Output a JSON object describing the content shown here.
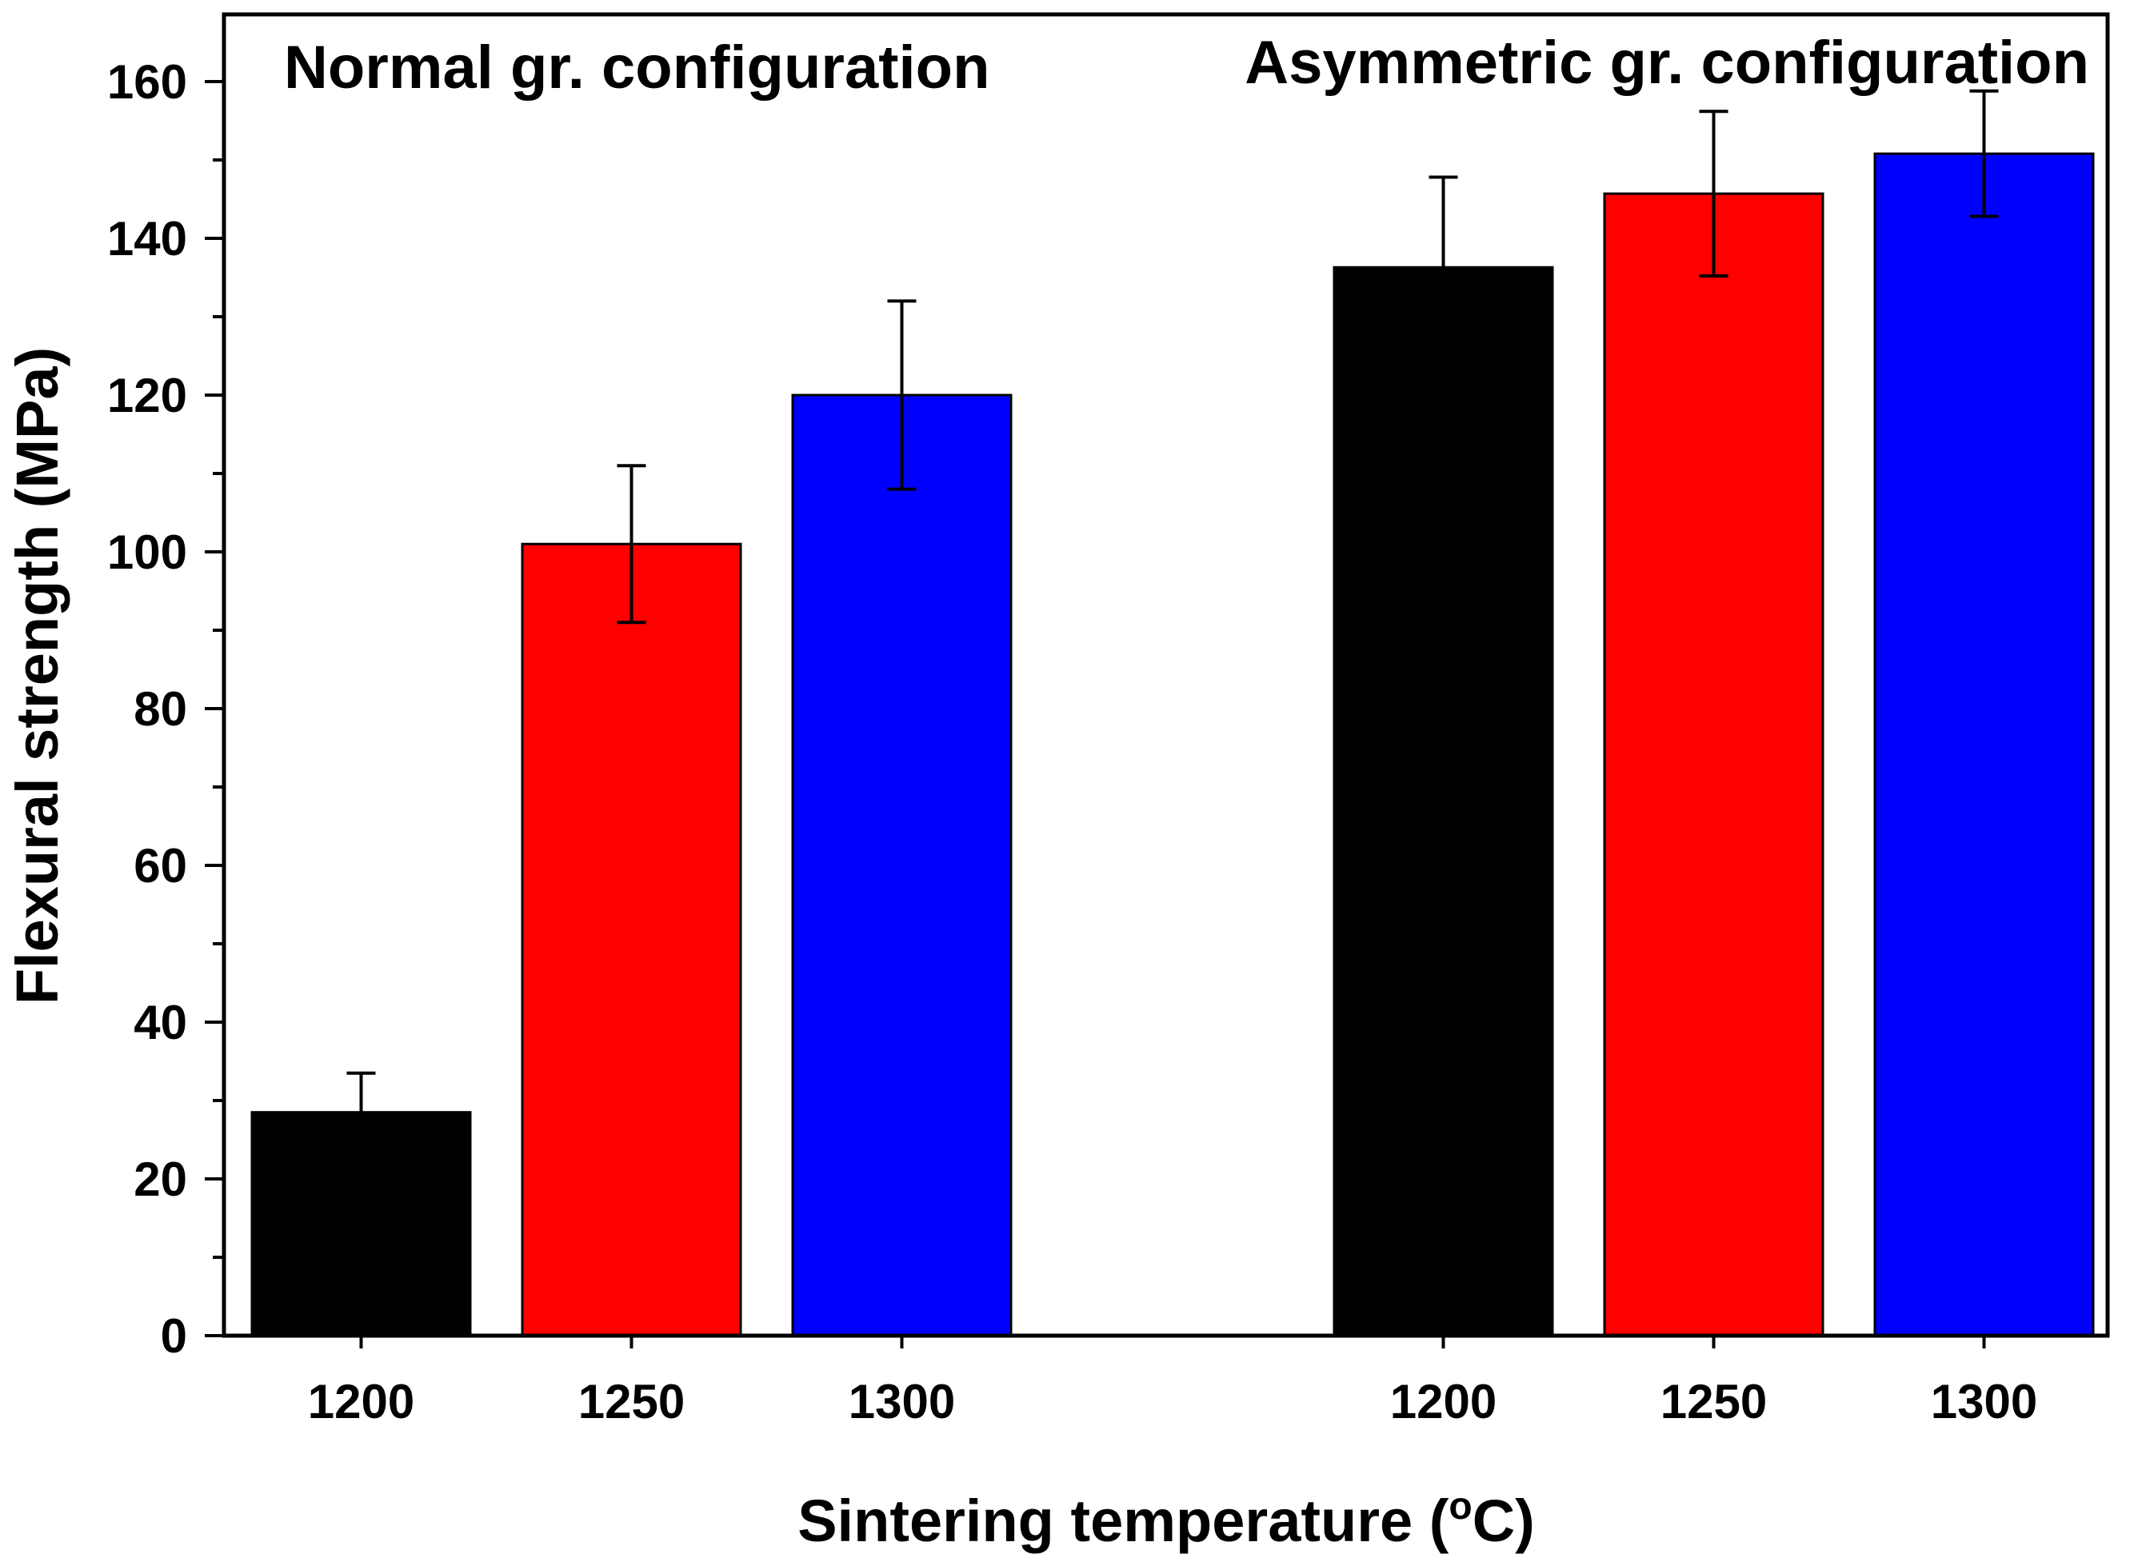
{
  "chart_data": {
    "type": "bar",
    "title": "",
    "xlabel": "Sintering temperature (",
    "xlabel_superscript": "o",
    "xlabel_unit": "C)",
    "ylabel": "Flexural strength (MPa)",
    "ylim": [
      0,
      170
    ],
    "yticks": [
      "0",
      "20",
      "40",
      "60",
      "80",
      "100",
      "120",
      "140",
      "160"
    ],
    "grid": false,
    "groups": [
      {
        "label": "Normal gr. configuration",
        "categories": [
          "1200",
          "1250",
          "1300"
        ],
        "values": [
          28.5,
          101,
          120
        ],
        "errors": [
          5,
          10,
          12
        ],
        "colors": [
          "#000000",
          "#ff0000",
          "#0000ff"
        ]
      },
      {
        "label": "Asymmetric gr. configuration",
        "categories": [
          "1200",
          "1250",
          "1300"
        ],
        "values": [
          136.3,
          145.7,
          150.8
        ],
        "errors": [
          11.5,
          10.5,
          8
        ],
        "colors": [
          "#000000",
          "#ff0000",
          "#0000ff"
        ]
      }
    ]
  }
}
